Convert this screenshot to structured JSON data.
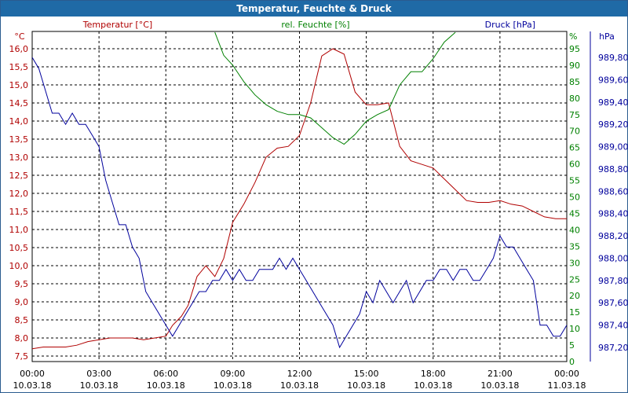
{
  "window": {
    "title": "Temperatur, Feuchte & Druck"
  },
  "colors": {
    "temperature": "#b00000",
    "humidity": "#008000",
    "pressure": "#00009c",
    "grid": "#000000",
    "titlebar": "#1f6aa6"
  },
  "chart_data": {
    "type": "line",
    "title": "Temperatur, Feuchte & Druck",
    "grid": true,
    "x": {
      "range": [
        "10.03.18 00:00",
        "11.03.18 00:00"
      ],
      "ticks": [
        {
          "time": "00:00",
          "date": "10.03.18"
        },
        {
          "time": "03:00",
          "date": "10.03.18"
        },
        {
          "time": "06:00",
          "date": "10.03.18"
        },
        {
          "time": "09:00",
          "date": "10.03.18"
        },
        {
          "time": "12:00",
          "date": "10.03.18"
        },
        {
          "time": "15:00",
          "date": "10.03.18"
        },
        {
          "time": "18:00",
          "date": "10.03.18"
        },
        {
          "time": "21:00",
          "date": "10.03.18"
        },
        {
          "time": "00:00",
          "date": "11.03.18"
        }
      ]
    },
    "axes": {
      "temperature": {
        "unit": "°C",
        "min": 7.5,
        "max": 16.0,
        "ticks": [
          "16,0",
          "15,5",
          "15,0",
          "14,5",
          "14,0",
          "13,5",
          "13,0",
          "12,5",
          "12,0",
          "11,5",
          "11,0",
          "10,5",
          "10,0",
          "9,5",
          "9,0",
          "8,5",
          "8,0",
          "7,5"
        ]
      },
      "humidity": {
        "unit": "%",
        "min": 0,
        "max": 95,
        "ticks": [
          "95",
          "90",
          "85",
          "80",
          "75",
          "70",
          "65",
          "60",
          "55",
          "50",
          "45",
          "40",
          "35",
          "30",
          "25",
          "20",
          "15",
          "10",
          "5",
          "0"
        ]
      },
      "pressure": {
        "unit": "hPa",
        "min": 987.2,
        "max": 989.8,
        "ticks": [
          "989,80",
          "989,60",
          "989,40",
          "989,20",
          "989,00",
          "988,80",
          "988,60",
          "988,40",
          "988,20",
          "988,00",
          "987,80",
          "987,60",
          "987,40",
          "987,20"
        ]
      }
    },
    "series": [
      {
        "name": "Temperatur [°C]",
        "axis": "temperature",
        "points": [
          [
            0,
            7.7
          ],
          [
            0.5,
            7.75
          ],
          [
            1,
            7.75
          ],
          [
            1.5,
            7.75
          ],
          [
            2,
            7.8
          ],
          [
            2.5,
            7.9
          ],
          [
            3,
            7.95
          ],
          [
            3.5,
            8.0
          ],
          [
            4,
            8.0
          ],
          [
            4.5,
            8.0
          ],
          [
            5,
            7.95
          ],
          [
            5.5,
            8.0
          ],
          [
            6,
            8.05
          ],
          [
            6.3,
            8.35
          ],
          [
            6.7,
            8.6
          ],
          [
            7,
            8.9
          ],
          [
            7.4,
            9.7
          ],
          [
            7.8,
            10.0
          ],
          [
            8.2,
            9.7
          ],
          [
            8.6,
            10.2
          ],
          [
            9,
            11.2
          ],
          [
            9.5,
            11.7
          ],
          [
            10,
            12.3
          ],
          [
            10.5,
            13.0
          ],
          [
            11,
            13.25
          ],
          [
            11.5,
            13.3
          ],
          [
            12,
            13.6
          ],
          [
            12.5,
            14.5
          ],
          [
            13,
            15.8
          ],
          [
            13.5,
            16.0
          ],
          [
            14,
            15.85
          ],
          [
            14.5,
            14.8
          ],
          [
            15,
            14.45
          ],
          [
            15.5,
            14.45
          ],
          [
            16,
            14.5
          ],
          [
            16.5,
            13.3
          ],
          [
            17,
            12.9
          ],
          [
            17.5,
            12.8
          ],
          [
            18,
            12.7
          ],
          [
            18.5,
            12.4
          ],
          [
            19,
            12.1
          ],
          [
            19.5,
            11.8
          ],
          [
            20,
            11.75
          ],
          [
            20.5,
            11.75
          ],
          [
            21,
            11.8
          ],
          [
            21.5,
            11.7
          ],
          [
            22,
            11.65
          ],
          [
            22.5,
            11.5
          ],
          [
            23,
            11.35
          ],
          [
            23.5,
            11.3
          ],
          [
            24,
            11.3
          ]
        ]
      },
      {
        "name": "rel. Feuchte [%]",
        "axis": "humidity",
        "points": [
          [
            8.2,
            100
          ],
          [
            8.6,
            93
          ],
          [
            9,
            90
          ],
          [
            9.5,
            85
          ],
          [
            10,
            81
          ],
          [
            10.5,
            78
          ],
          [
            11,
            76
          ],
          [
            11.5,
            75
          ],
          [
            12,
            75
          ],
          [
            12.5,
            74
          ],
          [
            13,
            71
          ],
          [
            13.5,
            68
          ],
          [
            14,
            66
          ],
          [
            14.5,
            69
          ],
          [
            15,
            73
          ],
          [
            15.5,
            75
          ],
          [
            16,
            76.5
          ],
          [
            16.5,
            84
          ],
          [
            17,
            88
          ],
          [
            17.5,
            88
          ],
          [
            18,
            92
          ],
          [
            18.5,
            97
          ],
          [
            19,
            100
          ]
        ]
      },
      {
        "name": "Druck [hPa]",
        "axis": "pressure",
        "points": [
          [
            0,
            989.8
          ],
          [
            0.3,
            989.7
          ],
          [
            0.6,
            989.5
          ],
          [
            0.9,
            989.3
          ],
          [
            1.2,
            989.3
          ],
          [
            1.5,
            989.2
          ],
          [
            1.8,
            989.3
          ],
          [
            2.1,
            989.2
          ],
          [
            2.4,
            989.2
          ],
          [
            2.7,
            989.1
          ],
          [
            3,
            989.0
          ],
          [
            3.3,
            988.7
          ],
          [
            3.6,
            988.5
          ],
          [
            3.9,
            988.3
          ],
          [
            4.2,
            988.3
          ],
          [
            4.5,
            988.1
          ],
          [
            4.8,
            988.0
          ],
          [
            5.1,
            987.7
          ],
          [
            5.4,
            987.6
          ],
          [
            5.7,
            987.5
          ],
          [
            6,
            987.4
          ],
          [
            6.3,
            987.3
          ],
          [
            6.6,
            987.4
          ],
          [
            6.9,
            987.5
          ],
          [
            7.2,
            987.6
          ],
          [
            7.5,
            987.7
          ],
          [
            7.8,
            987.7
          ],
          [
            8.1,
            987.8
          ],
          [
            8.4,
            987.8
          ],
          [
            8.7,
            987.9
          ],
          [
            9,
            987.8
          ],
          [
            9.3,
            987.9
          ],
          [
            9.6,
            987.8
          ],
          [
            9.9,
            987.8
          ],
          [
            10.2,
            987.9
          ],
          [
            10.5,
            987.9
          ],
          [
            10.8,
            987.9
          ],
          [
            11.1,
            988.0
          ],
          [
            11.4,
            987.9
          ],
          [
            11.7,
            988.0
          ],
          [
            12,
            987.9
          ],
          [
            12.3,
            987.8
          ],
          [
            12.6,
            987.7
          ],
          [
            12.9,
            987.6
          ],
          [
            13.2,
            987.5
          ],
          [
            13.5,
            987.4
          ],
          [
            13.8,
            987.2
          ],
          [
            14.1,
            987.3
          ],
          [
            14.4,
            987.4
          ],
          [
            14.7,
            987.5
          ],
          [
            15,
            987.7
          ],
          [
            15.3,
            987.6
          ],
          [
            15.6,
            987.8
          ],
          [
            15.9,
            987.7
          ],
          [
            16.2,
            987.6
          ],
          [
            16.5,
            987.7
          ],
          [
            16.8,
            987.8
          ],
          [
            17.1,
            987.6
          ],
          [
            17.4,
            987.7
          ],
          [
            17.7,
            987.8
          ],
          [
            18,
            987.8
          ],
          [
            18.3,
            987.9
          ],
          [
            18.6,
            987.9
          ],
          [
            18.9,
            987.8
          ],
          [
            19.2,
            987.9
          ],
          [
            19.5,
            987.9
          ],
          [
            19.8,
            987.8
          ],
          [
            20.1,
            987.8
          ],
          [
            20.4,
            987.9
          ],
          [
            20.7,
            988.0
          ],
          [
            21,
            988.2
          ],
          [
            21.3,
            988.1
          ],
          [
            21.6,
            988.1
          ],
          [
            21.9,
            988.0
          ],
          [
            22.2,
            987.9
          ],
          [
            22.5,
            987.8
          ],
          [
            22.8,
            987.4
          ],
          [
            23.1,
            987.4
          ],
          [
            23.4,
            987.3
          ],
          [
            23.7,
            987.3
          ],
          [
            24,
            987.4
          ]
        ]
      }
    ]
  }
}
